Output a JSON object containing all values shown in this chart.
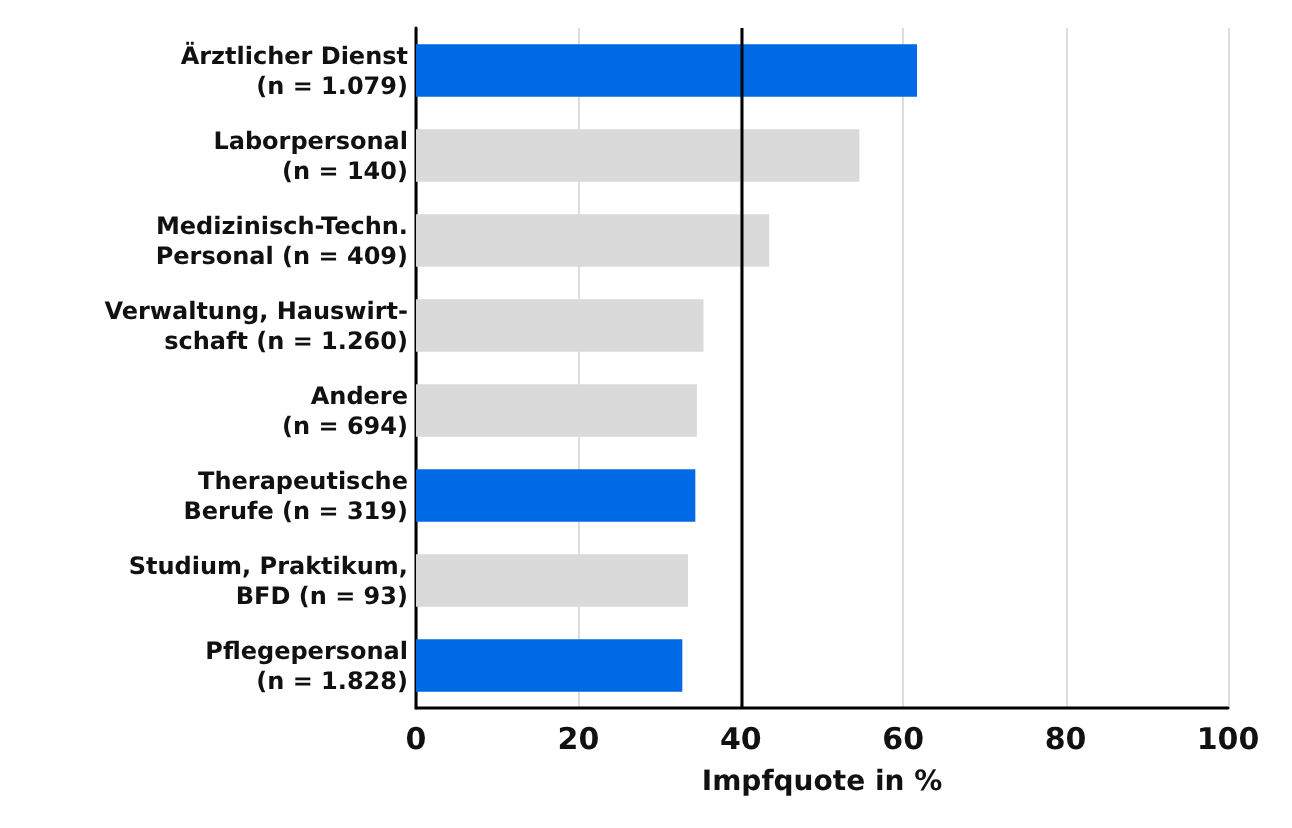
{
  "chart_data": {
    "type": "bar",
    "orientation": "horizontal",
    "xlabel": "Impfquote in %",
    "categories": [
      "Ärztlicher Dienst\n(n = 1.079)",
      "Laborpersonal\n(n = 140)",
      "Medizinisch-Techn.\nPersonal (n = 409)",
      "Verwaltung, Hauswirt-\nschaft (n = 1.260)",
      "Andere\n(n = 694)",
      "Therapeutische\nBerufe (n = 319)",
      "Studium, Praktikum,\nBFD (n = 93)",
      "Pflegepersonal\n(n = 1.828)"
    ],
    "values": [
      61.7,
      54.6,
      43.5,
      35.4,
      34.6,
      34.4,
      33.5,
      32.8
    ],
    "colors": [
      "#006ae6",
      "#dadada",
      "#dadada",
      "#dadada",
      "#dadada",
      "#006ae6",
      "#dadada",
      "#006ae6"
    ],
    "xlim": [
      0,
      100
    ],
    "xticks": [
      0,
      20,
      40,
      60,
      80,
      100
    ],
    "grid": "x",
    "ref_lines": [
      {
        "axis": "x",
        "value": 40,
        "color": "#000000"
      }
    ]
  }
}
